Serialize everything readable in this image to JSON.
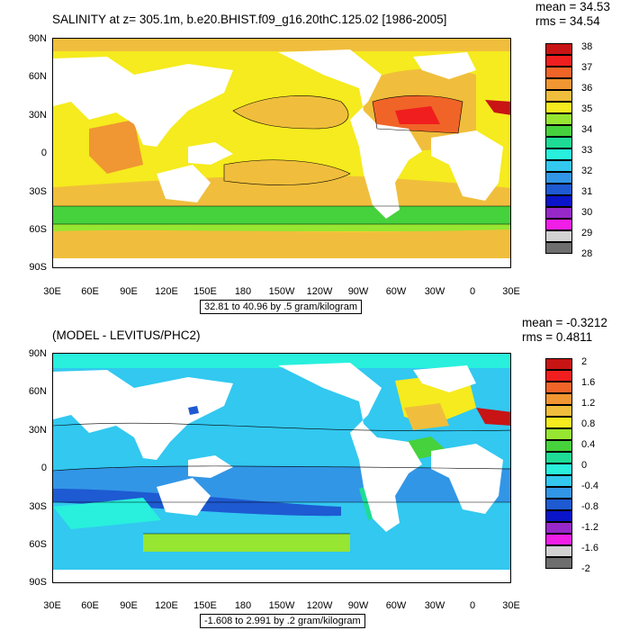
{
  "panels": [
    {
      "title": "SALINITY at z= 305.1m, b.e20.BHIST.f09_g16.20thC.125.02 [1986-2005]",
      "mean_text": "mean = 34.53",
      "rms_text": "rms = 34.54",
      "info": "32.81 to 40.96 by .5 gram/kilogram",
      "lat_labels": [
        "90N",
        "60N",
        "30N",
        "0",
        "30S",
        "60S",
        "90S"
      ],
      "lon_labels": [
        "30E",
        "60E",
        "90E",
        "120E",
        "150E",
        "180",
        "150W",
        "120W",
        "90W",
        "60W",
        "30W",
        "0",
        "30E"
      ],
      "colorbar_labels": [
        "38",
        "37",
        "36",
        "35",
        "34",
        "33",
        "32",
        "31",
        "30",
        "29",
        "28"
      ],
      "colorbar_colors": [
        "#c81414",
        "#f01e1e",
        "#f06428",
        "#f09632",
        "#f0be3c",
        "#f5eb1e",
        "#96e632",
        "#46d23c",
        "#1edc96",
        "#28f0dc",
        "#32c8f0",
        "#3296e6",
        "#1e5ad2",
        "#0a14c8",
        "#9628c8",
        "#f01ee6",
        "#d2d2d2",
        "#6e6e6e"
      ]
    },
    {
      "title": "(MODEL - LEVITUS/PHC2)",
      "mean_text": "mean = -0.3212",
      "rms_text": "rms = 0.4811",
      "info": "-1.608 to 2.991 by .2 gram/kilogram",
      "lat_labels": [
        "90N",
        "60N",
        "30N",
        "0",
        "30S",
        "60S",
        "90S"
      ],
      "lon_labels": [
        "30E",
        "60E",
        "90E",
        "120E",
        "150E",
        "180",
        "150W",
        "120W",
        "90W",
        "60W",
        "30W",
        "0",
        "30E"
      ],
      "colorbar_labels": [
        "2",
        "1.6",
        "1.2",
        "0.8",
        "0.4",
        "0",
        "-0.4",
        "-0.8",
        "-1.2",
        "-1.6",
        "-2"
      ],
      "colorbar_colors": [
        "#c81414",
        "#f01e1e",
        "#f06428",
        "#f09632",
        "#f0be3c",
        "#f5eb1e",
        "#96e632",
        "#46d23c",
        "#1edc96",
        "#28f0dc",
        "#32c8f0",
        "#3296e6",
        "#1e5ad2",
        "#0a14c8",
        "#9628c8",
        "#f01ee6",
        "#d2d2d2",
        "#6e6e6e"
      ]
    }
  ],
  "chart_data": [
    {
      "type": "heatmap",
      "title": "SALINITY at z= 305.1m, b.e20.BHIST.f09_g16.20thC.125.02 [1986-2005]",
      "units": "gram/kilogram",
      "mean": 34.53,
      "rms": 34.54,
      "min": 32.81,
      "max": 40.96,
      "interval": 0.5,
      "colorbar_ticks": [
        38,
        37,
        36,
        35,
        34,
        33,
        32,
        31,
        30,
        29,
        28
      ],
      "legend_position": "right",
      "projection": "cylindrical equidistant, 30E to 30E"
    },
    {
      "type": "heatmap",
      "title": "(MODEL - LEVITUS/PHC2)",
      "units": "gram/kilogram",
      "mean": -0.3212,
      "rms": 0.4811,
      "min": -1.608,
      "max": 2.991,
      "interval": 0.2,
      "colorbar_ticks": [
        2,
        1.6,
        1.2,
        0.8,
        0.4,
        0,
        -0.4,
        -0.8,
        -1.2,
        -1.6,
        -2
      ],
      "legend_position": "right",
      "projection": "cylindrical equidistant, 30E to 30E"
    }
  ]
}
